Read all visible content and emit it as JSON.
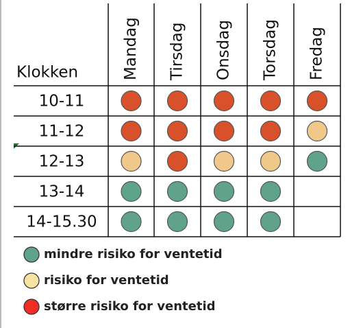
{
  "table": {
    "corner": "Klokken",
    "days": [
      "Mandag",
      "Tirsdag",
      "Onsdag",
      "Torsdag",
      "Fredag"
    ],
    "rows": [
      {
        "time": "10-11",
        "cells": [
          "#d9512b",
          "#d9512b",
          "#d9512b",
          "#d9512b",
          "#d9512b"
        ]
      },
      {
        "time": "11-12",
        "cells": [
          "#d9512b",
          "#d9512b",
          "#d9512b",
          "#d9512b",
          "#f0c98a"
        ]
      },
      {
        "time": "12-13",
        "cells": [
          "#f0c98a",
          "#d9512b",
          "#f0c98a",
          "#f0c98a",
          "#5fa38b"
        ]
      },
      {
        "time": "13-14",
        "cells": [
          "#5fa38b",
          "#5fa38b",
          "#5fa38b",
          "#5fa38b",
          null
        ]
      },
      {
        "time": "14-15.30",
        "cells": [
          "#5fa38b",
          "#5fa38b",
          "#5fa38b",
          "#5fa38b",
          null
        ]
      }
    ]
  },
  "legend": [
    {
      "label": "mindre risiko for ventetid",
      "color": "#5fa38b"
    },
    {
      "label": "risiko for ventetid",
      "color": "#f7e3a1"
    },
    {
      "label": "større risiko for ventetid",
      "color": "#ee2e24"
    }
  ]
}
